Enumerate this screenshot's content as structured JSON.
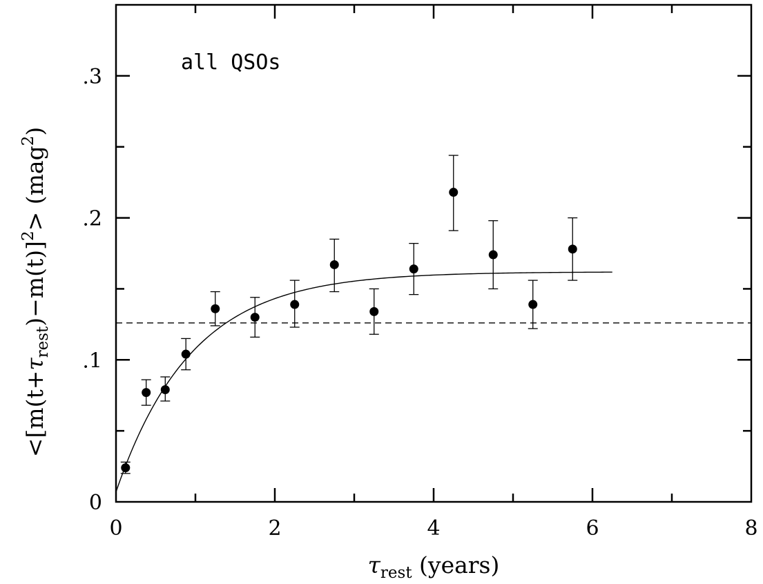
{
  "chart_data": {
    "type": "scatter",
    "xlim": [
      0,
      8
    ],
    "ylim": [
      0,
      0.35
    ],
    "x_ticks": [
      {
        "value": 0,
        "label": "0"
      },
      {
        "value": 2,
        "label": "2"
      },
      {
        "value": 4,
        "label": "4"
      },
      {
        "value": 6,
        "label": "6"
      },
      {
        "value": 8,
        "label": "8"
      }
    ],
    "x_minor_ticks": [
      1,
      3,
      5,
      7
    ],
    "y_ticks": [
      {
        "value": 0,
        "label": "0"
      },
      {
        "value": 0.1,
        "label": ".1"
      },
      {
        "value": 0.2,
        "label": ".2"
      },
      {
        "value": 0.3,
        "label": ".3"
      }
    ],
    "y_minor_ticks": [
      0.05,
      0.15,
      0.25
    ],
    "xlabel": {
      "symbol": "τ",
      "sub": "rest",
      "text": " (years)"
    },
    "ylabel": {
      "open": "<[m(t+",
      "symbol": "τ",
      "sub": "rest",
      "mid": ")−m(t)]",
      "sup": "2",
      "close": "> (mag",
      "sup2": "2",
      "end": ")"
    },
    "annotation": "all QSOs",
    "grid": false,
    "series": [
      {
        "x": [
          0.12,
          0.38,
          0.62,
          0.88,
          1.25,
          1.75,
          2.25,
          2.75,
          3.25,
          3.75,
          4.25,
          4.75,
          5.25,
          5.75
        ],
        "y": [
          0.024,
          0.077,
          0.079,
          0.104,
          0.136,
          0.13,
          0.139,
          0.167,
          0.134,
          0.164,
          0.218,
          0.174,
          0.139,
          0.178
        ],
        "err_low": [
          0.004,
          0.009,
          0.008,
          0.011,
          0.012,
          0.014,
          0.016,
          0.019,
          0.016,
          0.018,
          0.027,
          0.024,
          0.017,
          0.022
        ],
        "err_high": [
          0.004,
          0.009,
          0.009,
          0.011,
          0.012,
          0.014,
          0.017,
          0.018,
          0.016,
          0.018,
          0.026,
          0.024,
          0.017,
          0.022
        ]
      }
    ],
    "fit_curve": {
      "type": "line",
      "form": "a*(1-exp(-x/b))+c",
      "a": 0.155,
      "b": 0.95,
      "c": 0.007,
      "x_range": [
        0,
        6.25
      ]
    },
    "reference_line": {
      "type": "dashed",
      "y": 0.126
    }
  }
}
